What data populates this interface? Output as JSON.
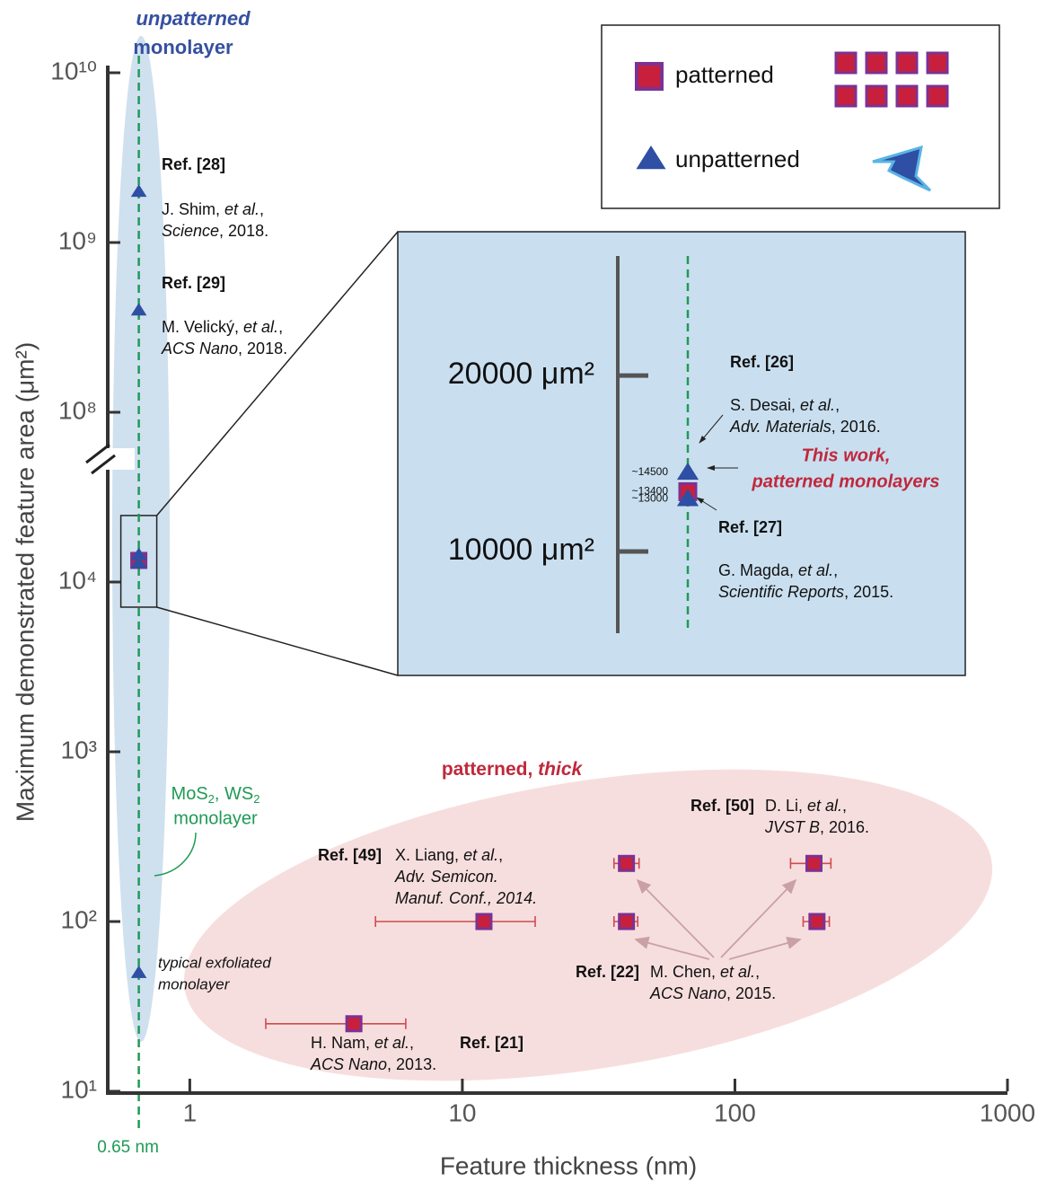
{
  "chart_data": {
    "type": "scatter",
    "xlabel": "Feature thickness (nm)",
    "ylabel": "Maximum demonstrated feature area (μm²)",
    "xscale": "log",
    "yscale": "log",
    "xlim": [
      0.5,
      1000
    ],
    "ylim": [
      10,
      10000000000
    ],
    "y_break": [
      100000,
      100000000
    ],
    "xticks": [
      1,
      10,
      100,
      1000
    ],
    "yticks": [
      {
        "value": 10,
        "label": "10¹"
      },
      {
        "value": 100,
        "label": "10²"
      },
      {
        "value": 1000,
        "label": "10³"
      },
      {
        "value": 10000,
        "label": "10⁴"
      },
      {
        "value": 100000000,
        "label": "10⁸"
      },
      {
        "value": 1000000000,
        "label": "10⁹"
      },
      {
        "value": 10000000000,
        "label": "10¹⁰"
      }
    ],
    "monolayer_thickness": {
      "value": 0.65,
      "label": "0.65 nm"
    },
    "legend": "upper right",
    "series": [
      {
        "name": "patterned",
        "marker": "square",
        "color": "#c8203c",
        "edge_color": "#7b3294",
        "x": [
          0.65,
          4,
          12,
          40,
          40,
          195,
          200
        ],
        "values": [
          13400,
          25,
          100,
          220,
          100,
          220,
          100
        ],
        "value_labels": [
          "~13400",
          null,
          null,
          null,
          null,
          null,
          null
        ],
        "x_err": [
          null,
          [
            1.9,
            6.2
          ],
          [
            4.8,
            18.5
          ],
          [
            36,
            44.5
          ],
          [
            36,
            44
          ],
          [
            160,
            225
          ],
          [
            178,
            222
          ]
        ]
      },
      {
        "name": "unpatterned",
        "marker": "triangle",
        "color": "#2e4fa3",
        "x": [
          0.65,
          0.65,
          0.65,
          0.65,
          0.65
        ],
        "values": [
          2000000000,
          400000000,
          14500,
          13000,
          50
        ],
        "value_labels": [
          null,
          null,
          "~14500",
          "~13000",
          null
        ]
      }
    ],
    "inset": {
      "ylim": [
        5360,
        26790
      ],
      "yticks": [
        {
          "value": 10000,
          "label": "10000 μm²"
        },
        {
          "value": 20000,
          "label": "20000 μm²"
        }
      ]
    },
    "annotations": {
      "unpatterned_monolayer": [
        "unpatterned",
        "monolayer"
      ],
      "patterned_thick": [
        "patterned, ",
        "thick"
      ],
      "mos2": [
        "MoS",
        "2",
        ", WS",
        "2",
        "monolayer"
      ],
      "exfoliated": [
        "typical exfoliated",
        "monolayer"
      ],
      "this_work": [
        "This work,",
        "patterned monolayers"
      ],
      "refs": [
        {
          "ref": "Ref. [28]",
          "lines": [
            [
              "J. Shim, ",
              "et al.",
              ","
            ],
            [
              "Science",
              ", 2018."
            ]
          ]
        },
        {
          "ref": "Ref. [29]",
          "lines": [
            [
              "M. Velický, ",
              "et al.",
              ","
            ],
            [
              "ACS Nano",
              ", 2018."
            ]
          ]
        },
        {
          "ref": "Ref. [26]",
          "lines": [
            [
              "S. Desai, ",
              "et al.",
              ","
            ],
            [
              "Adv. Materials",
              ", 2016."
            ]
          ]
        },
        {
          "ref": "Ref. [27]",
          "lines": [
            [
              "G. Magda, ",
              "et al.",
              ","
            ],
            [
              "Scientific Reports",
              ", 2015."
            ]
          ]
        },
        {
          "ref": "Ref. [49]",
          "lines": [
            [
              "X. Liang, ",
              "et al.",
              ","
            ],
            [
              "Adv. Semicon."
            ],
            [
              "Manuf. Conf., 2014."
            ]
          ]
        },
        {
          "ref": "Ref. [50]",
          "lines": [
            [
              "D. Li, ",
              "et al.",
              ","
            ],
            [
              "JVST B",
              ", 2016."
            ]
          ]
        },
        {
          "ref": "Ref. [22]",
          "lines": [
            [
              "M. Chen, ",
              "et al.",
              ","
            ],
            [
              "ACS Nano",
              ", 2015."
            ]
          ]
        },
        {
          "ref": "Ref. [21]",
          "lines": [
            [
              "H. Nam, ",
              "et al.",
              ","
            ],
            [
              "ACS Nano",
              ", 2013."
            ]
          ]
        }
      ]
    }
  }
}
